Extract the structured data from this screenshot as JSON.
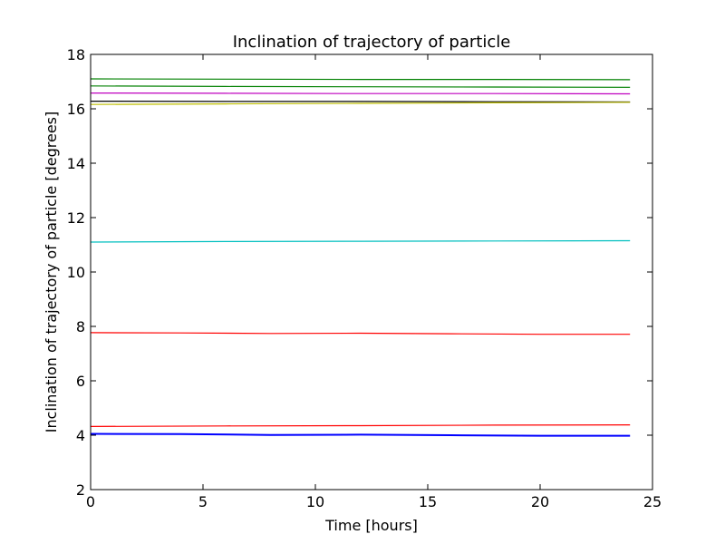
{
  "chart_data": {
    "type": "line",
    "title": "Inclination of trajectory of particle",
    "xlabel": "Time [hours]",
    "ylabel": "Inclination of trajectory of particle [degrees]",
    "xlim": [
      0,
      25
    ],
    "ylim": [
      2,
      18
    ],
    "xticks": [
      "0",
      "5",
      "10",
      "15",
      "20",
      "25"
    ],
    "yticks": [
      "2",
      "4",
      "6",
      "8",
      "10",
      "12",
      "14",
      "16",
      "18"
    ],
    "grid": false,
    "legend": "none",
    "series": [
      {
        "color": "#008000",
        "x": [
          0,
          6,
          12,
          18,
          24
        ],
        "y": [
          17.1,
          17.09,
          17.08,
          17.08,
          17.07
        ]
      },
      {
        "color": "#008000",
        "x": [
          0,
          6,
          12,
          18,
          24
        ],
        "y": [
          16.84,
          16.82,
          16.81,
          16.8,
          16.79
        ]
      },
      {
        "color": "#bf00bf",
        "x": [
          0,
          6,
          12,
          18,
          24
        ],
        "y": [
          16.58,
          16.57,
          16.56,
          16.56,
          16.55
        ]
      },
      {
        "color": "#000000",
        "x": [
          0,
          6,
          12,
          18,
          24
        ],
        "y": [
          16.28,
          16.27,
          16.27,
          16.26,
          16.25
        ]
      },
      {
        "color": "#bfbf00",
        "x": [
          0,
          6,
          12,
          18,
          24
        ],
        "y": [
          16.16,
          16.18,
          16.2,
          16.22,
          16.24
        ]
      },
      {
        "color": "#00bfbf",
        "x": [
          0,
          6,
          12,
          18,
          24
        ],
        "y": [
          11.1,
          11.12,
          11.13,
          11.14,
          11.15
        ]
      },
      {
        "color": "#ff0000",
        "x": [
          0,
          4,
          8,
          12,
          16,
          20,
          24
        ],
        "y": [
          7.77,
          7.76,
          7.74,
          7.75,
          7.73,
          7.71,
          7.71
        ]
      },
      {
        "color": "#ff0000",
        "x": [
          0,
          6,
          12,
          18,
          24
        ],
        "y": [
          4.32,
          4.34,
          4.35,
          4.37,
          4.38
        ]
      },
      {
        "color": "#0000ff",
        "x": [
          0,
          4,
          8,
          12,
          16,
          20,
          24
        ],
        "y": [
          4.05,
          4.04,
          4.01,
          4.02,
          4.0,
          3.98,
          3.98
        ]
      }
    ]
  }
}
